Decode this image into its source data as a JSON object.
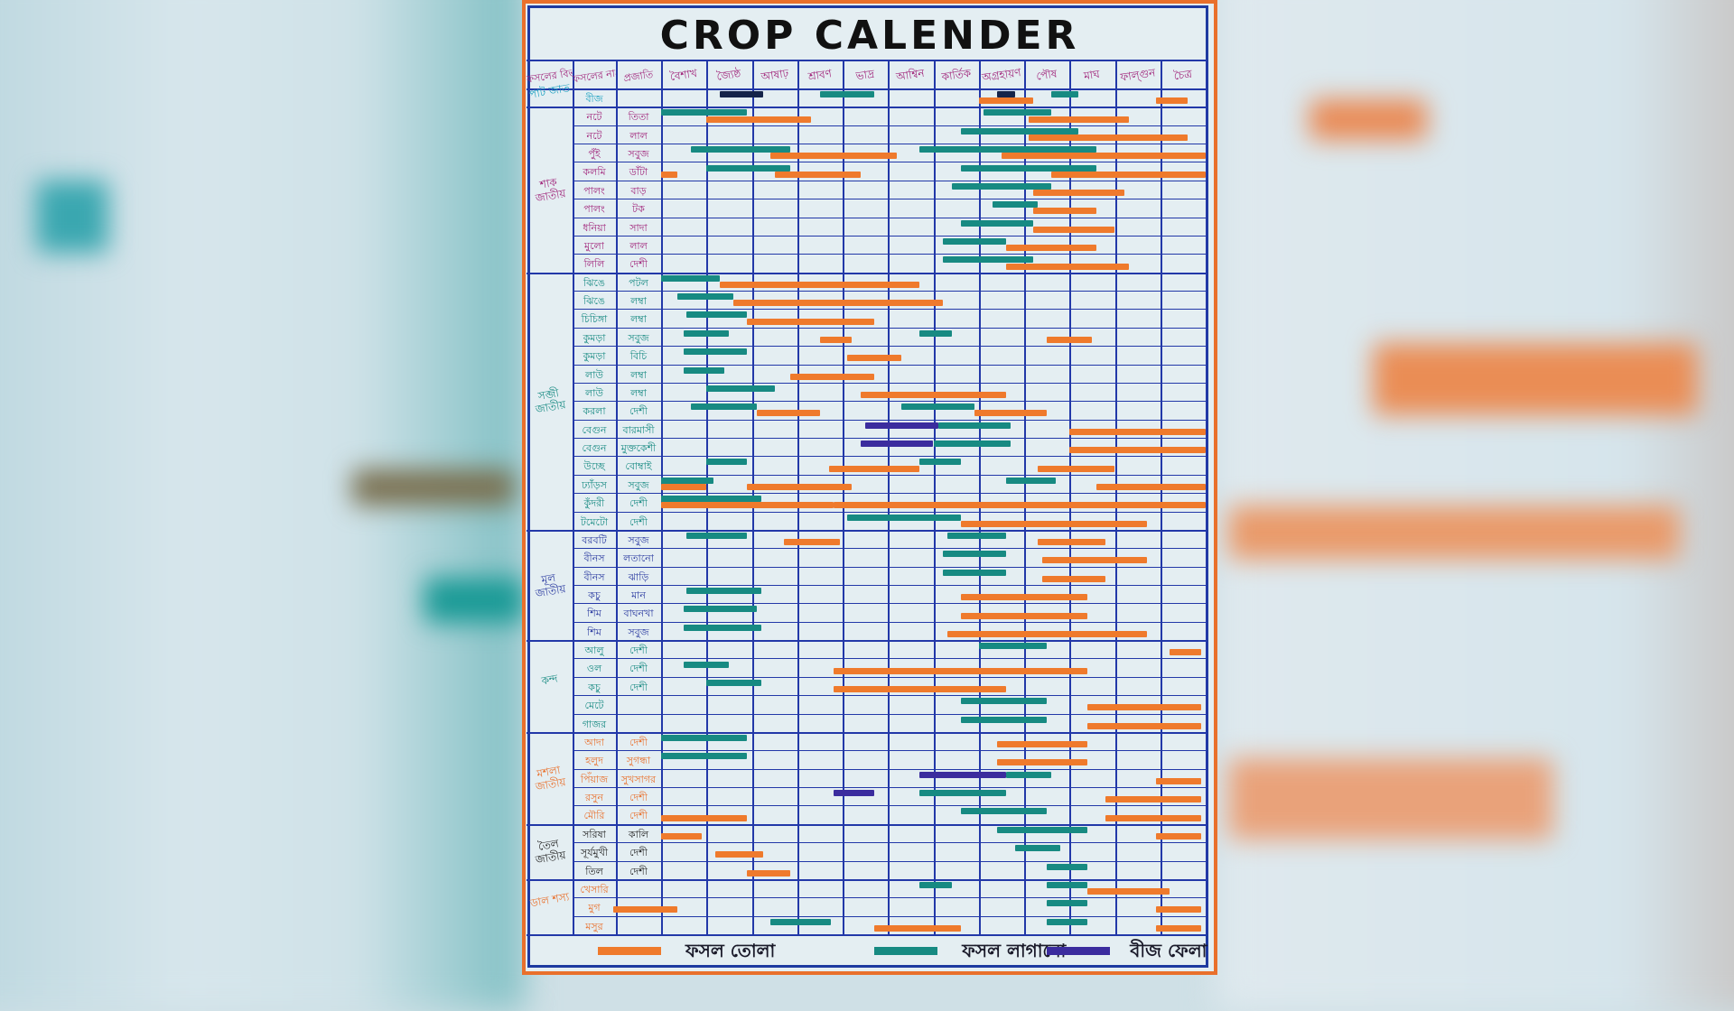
{
  "title": "CROP CALENDER",
  "colors": {
    "harvest": "#ef7a2c",
    "planting": "#178a82",
    "seed": "#3b2c9e",
    "seed_dark": "#15244a",
    "grid": "#2238a8"
  },
  "header": {
    "category": "ফসলের বিভাগ",
    "name": "ফসলের নাম",
    "variety": "প্রজাতি",
    "months": [
      "বৈশাখ",
      "জ্যৈষ্ঠ",
      "আষাঢ়",
      "শ্রাবণ",
      "ভাদ্র",
      "আশ্বিন",
      "কার্তিক",
      "অগ্রহায়ণ",
      "পৌষ",
      "মাঘ",
      "ফাল্গুন",
      "চৈত্র"
    ]
  },
  "legend": [
    {
      "type": "harvest",
      "label": "ফসল তোলা"
    },
    {
      "type": "planting",
      "label": "ফসল লাগানো"
    },
    {
      "type": "seed",
      "label": "বীজ ফেলা"
    }
  ],
  "categories": [
    {
      "label": "পাট জাত",
      "color": "#1aa0c0",
      "rows": [
        {
          "name": "বীজ",
          "variety": "",
          "bars": [
            [
              "seed_dark",
              1.3,
              2.25
            ],
            [
              "planting",
              3.5,
              4.7
            ],
            [
              "harvest",
              7.0,
              8.2
            ],
            [
              "seed_dark",
              7.4,
              7.8
            ],
            [
              "planting",
              8.6,
              9.2
            ],
            [
              "harvest",
              10.9,
              11.6
            ]
          ]
        }
      ]
    },
    {
      "label": "শাক জাতীয়",
      "color": "#a0247a",
      "rows": [
        {
          "name": "নটে",
          "variety": "তিতা",
          "bars": [
            [
              "planting",
              0,
              1.9
            ],
            [
              "harvest",
              1.0,
              3.3
            ],
            [
              "planting",
              7.1,
              8.6
            ],
            [
              "harvest",
              8.1,
              10.3
            ]
          ]
        },
        {
          "name": "নটে",
          "variety": "লাল",
          "bars": [
            [
              "planting",
              6.6,
              9.2
            ],
            [
              "harvest",
              8.1,
              11.6
            ]
          ]
        },
        {
          "name": "পুঁই",
          "variety": "সবুজ",
          "bars": [
            [
              "planting",
              0.65,
              2.85
            ],
            [
              "harvest",
              2.4,
              5.2
            ],
            [
              "planting",
              5.7,
              9.6
            ],
            [
              "harvest",
              7.5,
              12
            ]
          ]
        },
        {
          "name": "কলমি",
          "variety": "ডাঁটা",
          "bars": [
            [
              "harvest",
              0,
              0.35
            ],
            [
              "planting",
              1.0,
              2.85
            ],
            [
              "harvest",
              2.5,
              4.4
            ],
            [
              "planting",
              6.6,
              9.6
            ],
            [
              "harvest",
              8.6,
              12
            ]
          ]
        },
        {
          "name": "পালং",
          "variety": "বাড়",
          "bars": [
            [
              "planting",
              6.4,
              8.6
            ],
            [
              "harvest",
              8.2,
              10.2
            ]
          ]
        },
        {
          "name": "পালং",
          "variety": "টক",
          "bars": [
            [
              "planting",
              7.3,
              8.3
            ],
            [
              "harvest",
              8.2,
              9.6
            ]
          ]
        },
        {
          "name": "ধনিয়া",
          "variety": "সাদা",
          "bars": [
            [
              "planting",
              6.6,
              8.2
            ],
            [
              "harvest",
              8.2,
              10.0
            ]
          ]
        },
        {
          "name": "মুলো",
          "variety": "লাল",
          "bars": [
            [
              "planting",
              6.2,
              7.6
            ],
            [
              "harvest",
              7.6,
              9.6
            ]
          ]
        },
        {
          "name": "লিলি",
          "variety": "দেশী",
          "bars": [
            [
              "planting",
              6.2,
              8.2
            ],
            [
              "harvest",
              7.6,
              10.3
            ]
          ]
        }
      ]
    },
    {
      "label": "সব্জী জাতীয়",
      "color": "#178a82",
      "rows": [
        {
          "name": "ঝিঙে",
          "variety": "পটল",
          "bars": [
            [
              "planting",
              0,
              1.3
            ],
            [
              "harvest",
              1.3,
              5.7
            ]
          ]
        },
        {
          "name": "ঝিঙে",
          "variety": "লম্বা",
          "bars": [
            [
              "planting",
              0.35,
              1.6
            ],
            [
              "harvest",
              1.6,
              6.2
            ]
          ]
        },
        {
          "name": "চিচিঙ্গা",
          "variety": "লম্বা",
          "bars": [
            [
              "planting",
              0.55,
              1.9
            ],
            [
              "harvest",
              1.9,
              4.7
            ]
          ]
        },
        {
          "name": "কুমড়া",
          "variety": "সবুজ",
          "bars": [
            [
              "planting",
              0.5,
              1.5
            ],
            [
              "harvest",
              3.5,
              4.2
            ],
            [
              "planting",
              5.7,
              6.4
            ],
            [
              "harvest",
              8.5,
              9.5
            ]
          ]
        },
        {
          "name": "কুমড়া",
          "variety": "বিচি",
          "bars": [
            [
              "planting",
              0.5,
              1.9
            ],
            [
              "harvest",
              4.1,
              5.3
            ]
          ]
        },
        {
          "name": "লাউ",
          "variety": "লম্বা",
          "bars": [
            [
              "planting",
              0.5,
              1.4
            ],
            [
              "harvest",
              2.85,
              4.7
            ]
          ]
        },
        {
          "name": "লাউ",
          "variety": "লম্বা",
          "bars": [
            [
              "planting",
              1.0,
              2.5
            ],
            [
              "harvest",
              4.4,
              7.6
            ]
          ]
        },
        {
          "name": "করলা",
          "variety": "দেশী",
          "bars": [
            [
              "planting",
              0.65,
              2.1
            ],
            [
              "harvest",
              2.1,
              3.5
            ],
            [
              "planting",
              5.3,
              6.9
            ],
            [
              "harvest",
              6.9,
              8.5
            ]
          ]
        },
        {
          "name": "বেগুন",
          "variety": "বারমাসী",
          "bars": [
            [
              "seed",
              4.5,
              6.1
            ],
            [
              "planting",
              6.1,
              7.7
            ],
            [
              "harvest",
              9.0,
              12
            ]
          ]
        },
        {
          "name": "বেগুন",
          "variety": "মুক্তকেশী",
          "bars": [
            [
              "seed",
              4.4,
              6.0
            ],
            [
              "planting",
              6.0,
              7.7
            ],
            [
              "harvest",
              9.0,
              12
            ]
          ]
        },
        {
          "name": "উচ্ছে",
          "variety": "বোম্বাই",
          "bars": [
            [
              "planting",
              1.0,
              1.9
            ],
            [
              "harvest",
              3.7,
              5.7
            ],
            [
              "planting",
              5.7,
              6.6
            ],
            [
              "harvest",
              8.3,
              10.0
            ]
          ]
        },
        {
          "name": "ঢ্যাঁড়স",
          "variety": "সবুজ",
          "bars": [
            [
              "planting",
              0,
              1.15
            ],
            [
              "harvest",
              0,
              1.0
            ],
            [
              "harvest",
              1.9,
              4.2
            ],
            [
              "planting",
              7.6,
              8.7
            ],
            [
              "harvest",
              9.6,
              12
            ]
          ]
        },
        {
          "name": "কুঁদরী",
          "variety": "দেশী",
          "bars": [
            [
              "planting",
              0,
              2.2
            ],
            [
              "harvest",
              0,
              3.8
            ],
            [
              "harvest",
              3.8,
              12
            ]
          ]
        },
        {
          "name": "টমেটো",
          "variety": "দেশী",
          "bars": [
            [
              "planting",
              4.1,
              6.6
            ],
            [
              "harvest",
              6.6,
              10.7
            ]
          ]
        }
      ]
    },
    {
      "label": "মূল জাতীয়",
      "color": "#2a3aa0",
      "rows": [
        {
          "name": "বরবটি",
          "variety": "সবুজ",
          "bars": [
            [
              "planting",
              0.55,
              1.9
            ],
            [
              "harvest",
              2.7,
              3.95
            ],
            [
              "planting",
              6.3,
              7.6
            ],
            [
              "harvest",
              8.3,
              9.8
            ]
          ]
        },
        {
          "name": "বীনস",
          "variety": "লতানো",
          "bars": [
            [
              "planting",
              6.2,
              7.6
            ],
            [
              "harvest",
              8.4,
              10.7
            ]
          ]
        },
        {
          "name": "বীনস",
          "variety": "ঝাড়ি",
          "bars": [
            [
              "planting",
              6.2,
              7.6
            ],
            [
              "harvest",
              8.4,
              9.8
            ]
          ]
        },
        {
          "name": "কচু",
          "variety": "মান",
          "bars": [
            [
              "planting",
              0.55,
              2.2
            ],
            [
              "harvest",
              6.6,
              9.4
            ]
          ]
        },
        {
          "name": "শিম",
          "variety": "বাঘনখা",
          "bars": [
            [
              "planting",
              0.5,
              2.1
            ],
            [
              "harvest",
              6.6,
              9.4
            ]
          ]
        },
        {
          "name": "শিম",
          "variety": "সবুজ",
          "bars": [
            [
              "planting",
              0.5,
              2.2
            ],
            [
              "harvest",
              6.3,
              10.7
            ]
          ]
        }
      ]
    },
    {
      "label": "কন্দ",
      "color": "#178a82",
      "rows": [
        {
          "name": "আলু",
          "variety": "দেশী",
          "bars": [
            [
              "planting",
              7.0,
              8.5
            ],
            [
              "harvest",
              11.2,
              11.9
            ]
          ]
        },
        {
          "name": "ওল",
          "variety": "দেশী",
          "bars": [
            [
              "planting",
              0.5,
              1.5
            ],
            [
              "harvest",
              3.8,
              9.4
            ]
          ]
        },
        {
          "name": "কচু",
          "variety": "দেশী",
          "bars": [
            [
              "planting",
              1.0,
              2.2
            ],
            [
              "harvest",
              3.8,
              7.6
            ]
          ]
        },
        {
          "name": "মেটে",
          "variety": "",
          "bars": [
            [
              "planting",
              6.6,
              8.5
            ],
            [
              "harvest",
              9.4,
              11.9
            ]
          ]
        },
        {
          "name": "গাজর",
          "variety": "",
          "bars": [
            [
              "planting",
              6.6,
              8.5
            ],
            [
              "harvest",
              9.4,
              11.9
            ]
          ]
        }
      ]
    },
    {
      "label": "মশলা জাতীয়",
      "color": "#e9702c",
      "rows": [
        {
          "name": "আদা",
          "variety": "দেশী",
          "bars": [
            [
              "planting",
              0,
              1.9
            ],
            [
              "harvest",
              7.4,
              9.4
            ]
          ]
        },
        {
          "name": "হলুদ",
          "variety": "সুগন্ধা",
          "bars": [
            [
              "planting",
              0,
              1.9
            ],
            [
              "harvest",
              7.4,
              9.4
            ]
          ]
        },
        {
          "name": "পিঁয়াজ",
          "variety": "সুখসাগর",
          "bars": [
            [
              "seed",
              5.7,
              7.6
            ],
            [
              "planting",
              7.6,
              8.6
            ],
            [
              "harvest",
              10.9,
              11.9
            ]
          ]
        },
        {
          "name": "রসুন",
          "variety": "দেশী",
          "bars": [
            [
              "seed",
              3.8,
              4.7
            ],
            [
              "planting",
              5.7,
              7.6
            ],
            [
              "harvest",
              9.8,
              11.9
            ]
          ]
        },
        {
          "name": "মৌরি",
          "variety": "দেশী",
          "bars": [
            [
              "harvest",
              0,
              1.9
            ],
            [
              "planting",
              6.6,
              8.5
            ],
            [
              "harvest",
              9.8,
              11.9
            ]
          ]
        }
      ]
    },
    {
      "label": "তৈল জাতীয়",
      "color": "#222222",
      "rows": [
        {
          "name": "সরিষা",
          "variety": "কালি",
          "bars": [
            [
              "harvest",
              0,
              0.9
            ],
            [
              "planting",
              7.4,
              9.4
            ],
            [
              "harvest",
              10.9,
              11.9
            ]
          ]
        },
        {
          "name": "সূর্যমুখী",
          "variety": "দেশী",
          "bars": [
            [
              "harvest",
              1.2,
              2.25
            ],
            [
              "planting",
              7.8,
              8.8
            ]
          ]
        },
        {
          "name": "তিল",
          "variety": "দেশী",
          "bars": [
            [
              "harvest",
              1.9,
              2.85
            ],
            [
              "planting",
              8.5,
              9.4
            ]
          ]
        }
      ]
    },
    {
      "label": "ডাল শস্য",
      "color": "#e9702c",
      "rows": [
        {
          "name": "খেসারি",
          "variety": "",
          "bars": [
            [
              "planting",
              5.7,
              6.4
            ],
            [
              "harvest",
              9.4,
              11.2
            ],
            [
              "planting",
              8.5,
              9.4
            ]
          ]
        },
        {
          "name": "মুগ",
          "variety": "",
          "bars": [
            [
              "harvest",
              -1.05,
              0.35
            ],
            [
              "planting",
              8.5,
              9.4
            ],
            [
              "harvest",
              10.9,
              11.9
            ]
          ]
        },
        {
          "name": "মসুর",
          "variety": "",
          "bars": [
            [
              "planting",
              2.4,
              3.75
            ],
            [
              "harvest",
              4.7,
              6.6
            ],
            [
              "planting",
              8.5,
              9.4
            ],
            [
              "harvest",
              10.9,
              11.9
            ]
          ]
        }
      ]
    }
  ]
}
